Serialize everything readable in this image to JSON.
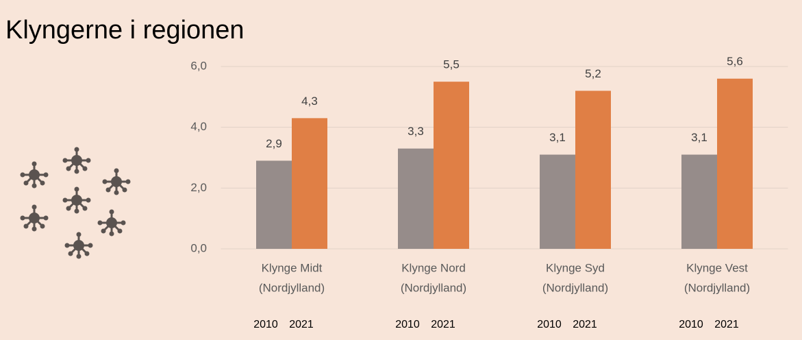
{
  "chart_data": {
    "type": "bar",
    "title": "Klyngerne i regionen",
    "categories": [
      [
        "Klynge Midt",
        "(Nordjylland)"
      ],
      [
        "Klynge Nord",
        "(Nordjylland)"
      ],
      [
        "Klynge Syd",
        "(Nordjylland)"
      ],
      [
        "Klynge Vest",
        "(Nordjylland)"
      ]
    ],
    "series": [
      {
        "name": "2010",
        "color": "#968c8a",
        "values": [
          2.9,
          3.3,
          3.1,
          3.1
        ],
        "value_labels": [
          "2,9",
          "3,3",
          "3,1",
          "3,1"
        ]
      },
      {
        "name": "2021",
        "color": "#e07f45",
        "values": [
          4.3,
          5.5,
          5.2,
          5.6
        ],
        "value_labels": [
          "4,3",
          "5,5",
          "5,2",
          "5,6"
        ]
      }
    ],
    "ylim": [
      0,
      6
    ],
    "yticks": [
      {
        "value": 0,
        "label": "0,0"
      },
      {
        "value": 2,
        "label": "2,0"
      },
      {
        "value": 4,
        "label": "4,0"
      },
      {
        "value": 6,
        "label": "6,0"
      }
    ],
    "grid": true
  }
}
